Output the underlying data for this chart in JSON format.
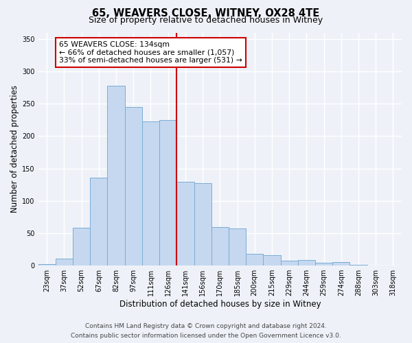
{
  "title": "65, WEAVERS CLOSE, WITNEY, OX28 4TE",
  "subtitle": "Size of property relative to detached houses in Witney",
  "xlabel": "Distribution of detached houses by size in Witney",
  "ylabel": "Number of detached properties",
  "bar_labels": [
    "23sqm",
    "37sqm",
    "52sqm",
    "67sqm",
    "82sqm",
    "97sqm",
    "111sqm",
    "126sqm",
    "141sqm",
    "156sqm",
    "170sqm",
    "185sqm",
    "200sqm",
    "215sqm",
    "229sqm",
    "244sqm",
    "259sqm",
    "274sqm",
    "288sqm",
    "303sqm",
    "318sqm"
  ],
  "bar_heights": [
    2,
    11,
    59,
    136,
    278,
    245,
    223,
    225,
    130,
    127,
    60,
    57,
    18,
    16,
    8,
    9,
    4,
    6,
    1,
    0,
    0
  ],
  "bar_color": "#c5d8f0",
  "bar_edge_color": "#7bacd4",
  "vline_x": 8.0,
  "vline_color": "#cc0000",
  "annotation_title": "65 WEAVERS CLOSE: 134sqm",
  "annotation_line1": "← 66% of detached houses are smaller (1,057)",
  "annotation_line2": "33% of semi-detached houses are larger (531) →",
  "annotation_box_color": "#ffffff",
  "annotation_box_edge_color": "#cc0000",
  "ylim": [
    0,
    360
  ],
  "yticks": [
    0,
    50,
    100,
    150,
    200,
    250,
    300,
    350
  ],
  "footer_line1": "Contains HM Land Registry data © Crown copyright and database right 2024.",
  "footer_line2": "Contains public sector information licensed under the Open Government Licence v3.0.",
  "background_color": "#eef2f8",
  "grid_color": "#ffffff",
  "title_fontsize": 10.5,
  "subtitle_fontsize": 9,
  "axis_label_fontsize": 8.5,
  "tick_fontsize": 7,
  "annotation_fontsize": 7.8,
  "footer_fontsize": 6.5
}
